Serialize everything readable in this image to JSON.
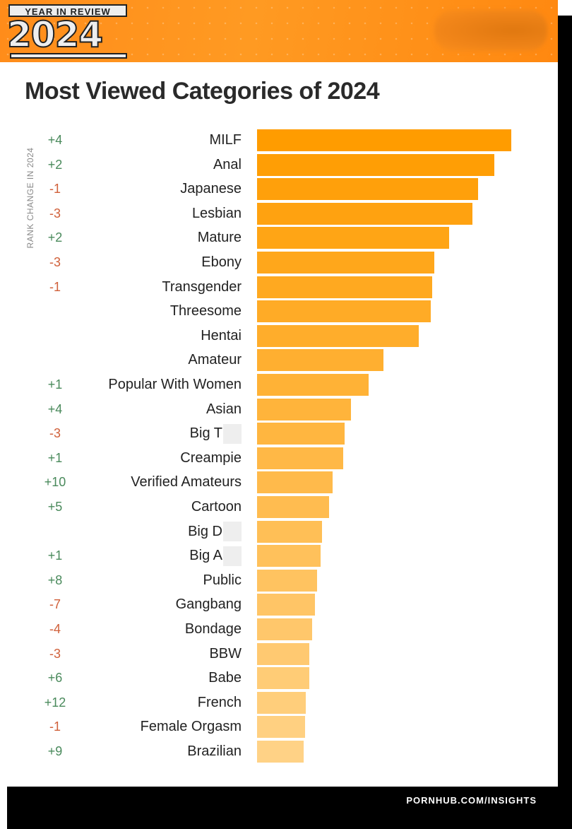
{
  "header": {
    "badge_top": "YEAR IN REVIEW",
    "badge_year": "2024"
  },
  "footer": {
    "url": "PORNHUB.COM/INSIGHTS"
  },
  "chart_data": {
    "type": "bar",
    "orientation": "horizontal",
    "title": "Most Viewed Categories of 2024",
    "side_label": "RANK CHANGE IN 2024",
    "value_note": "relative bar length, MILF = 100 (no axis shown)",
    "categories": [
      "MILF",
      "Anal",
      "Japanese",
      "Lesbian",
      "Mature",
      "Ebony",
      "Transgender",
      "Threesome",
      "Hentai",
      "Amateur",
      "Popular With Women",
      "Asian",
      "Big T",
      "Creampie",
      "Verified Amateurs",
      "Cartoon",
      "Big D",
      "Big A",
      "Public",
      "Gangbang",
      "Bondage",
      "BBW",
      "Babe",
      "French",
      "Female Orgasm",
      "Brazilian"
    ],
    "censored": [
      false,
      false,
      false,
      false,
      false,
      false,
      false,
      false,
      false,
      false,
      false,
      false,
      true,
      false,
      false,
      false,
      true,
      true,
      false,
      false,
      false,
      false,
      false,
      false,
      false,
      false
    ],
    "rank_change": [
      "+4",
      "+2",
      "-1",
      "-3",
      "+2",
      "-3",
      "-1",
      "",
      "",
      "",
      "+1",
      "+4",
      "-3",
      "+1",
      "+10",
      "+5",
      "",
      "+1",
      "+8",
      "-7",
      "-4",
      "-3",
      "+6",
      "+12",
      "-1",
      "+9"
    ],
    "values": [
      100,
      93.3,
      86.9,
      84.7,
      75.6,
      69.7,
      68.9,
      68.3,
      63.6,
      49.7,
      43.9,
      36.9,
      34.4,
      33.9,
      29.7,
      28.3,
      25.6,
      25,
      23.6,
      22.8,
      21.7,
      20.6,
      20.6,
      19.2,
      18.9,
      18.3
    ],
    "colors": {
      "bar_start": "#ff9c00",
      "bar_end": "#ffd286",
      "up": "#4a8a5c",
      "down": "#d0603a"
    }
  }
}
